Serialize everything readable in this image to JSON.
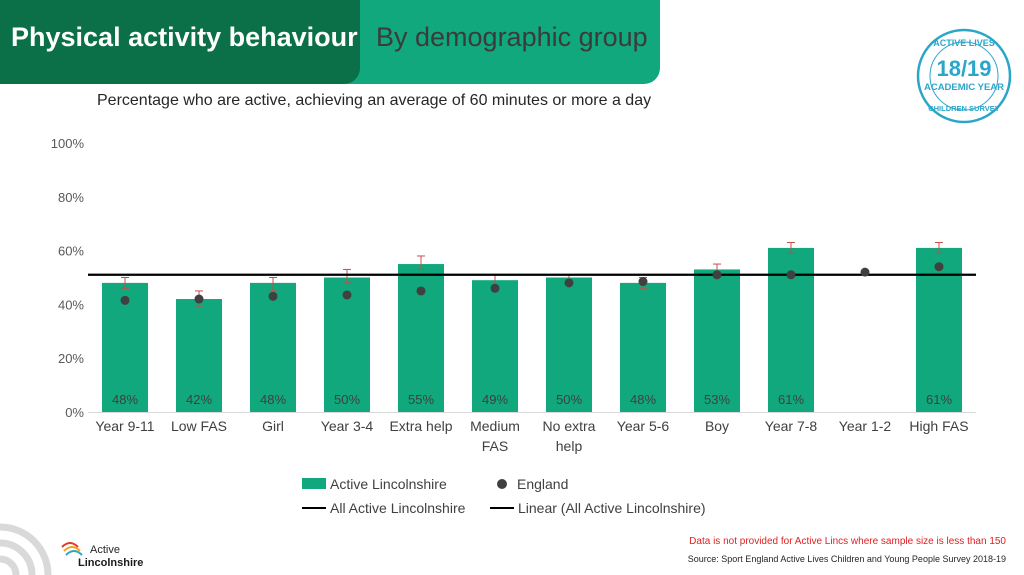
{
  "header": {
    "title": "Physical activity behaviour",
    "subtitle": "By demographic group"
  },
  "badge": {
    "top_text": "ACTIVE LIVES",
    "year": "18/19",
    "academic": "ACADEMIC YEAR",
    "bottom_text": "CHILDREN SURVEY"
  },
  "chart_data": {
    "type": "bar",
    "subtitle": "Percentage who are active, achieving an average of 60 minutes or more a day",
    "categories": [
      "Year 9-11",
      "Low FAS",
      "Girl",
      "Year 3-4",
      "Extra help",
      "Medium FAS",
      "No extra help",
      "Year 5-6",
      "Boy",
      "Year 7-8",
      "Year 1-2",
      "High FAS"
    ],
    "category_lines": [
      [
        "Year 9-11"
      ],
      [
        "Low FAS"
      ],
      [
        "Girl"
      ],
      [
        "Year 3-4"
      ],
      [
        "Extra help"
      ],
      [
        "Medium",
        "FAS"
      ],
      [
        "No extra",
        "help"
      ],
      [
        "Year 5-6"
      ],
      [
        "Boy"
      ],
      [
        "Year 7-8"
      ],
      [
        "Year 1-2"
      ],
      [
        "High FAS"
      ]
    ],
    "ylim": [
      0,
      100
    ],
    "yticks": [
      0,
      20,
      40,
      60,
      80,
      100
    ],
    "ytick_labels": [
      "0%",
      "20%",
      "40%",
      "60%",
      "80%",
      "100%"
    ],
    "grid": false,
    "legend_position": "bottom",
    "series": [
      {
        "name": "Active Lincolnshire",
        "kind": "bar",
        "color": "#10a87c",
        "values": [
          48,
          42,
          48,
          50,
          55,
          49,
          50,
          48,
          53,
          61,
          null,
          61
        ],
        "labels": [
          "48%",
          "42%",
          "48%",
          "50%",
          "55%",
          "49%",
          "50%",
          "48%",
          "53%",
          "61%",
          "",
          "61%"
        ],
        "error_low": [
          46,
          39,
          45,
          48,
          53,
          47,
          48,
          46,
          51,
          59,
          null,
          59
        ],
        "error_high": [
          50,
          45,
          50,
          53,
          58,
          51,
          51,
          50,
          55,
          63,
          null,
          63
        ],
        "error_color": "#c0504d"
      },
      {
        "name": "England",
        "kind": "point",
        "color": "#404040",
        "values": [
          41.5,
          42,
          43,
          43.5,
          45,
          46,
          48,
          48.5,
          51,
          51,
          52,
          54
        ]
      },
      {
        "name": "All Active Lincolnshire",
        "kind": "line",
        "color": "#000000",
        "value": 51
      },
      {
        "name": "Linear (All Active Lincolnshire)",
        "kind": "line",
        "color": "#000000",
        "value": 51
      }
    ]
  },
  "footnotes": {
    "sample_note": "Data is not provided for Active Lincs where sample size is less than 150",
    "source": "Source: Sport England Active Lives Children and Young People Survey 2018-19"
  },
  "logo": {
    "line1": "Active",
    "line2": "Lincolnshire"
  }
}
